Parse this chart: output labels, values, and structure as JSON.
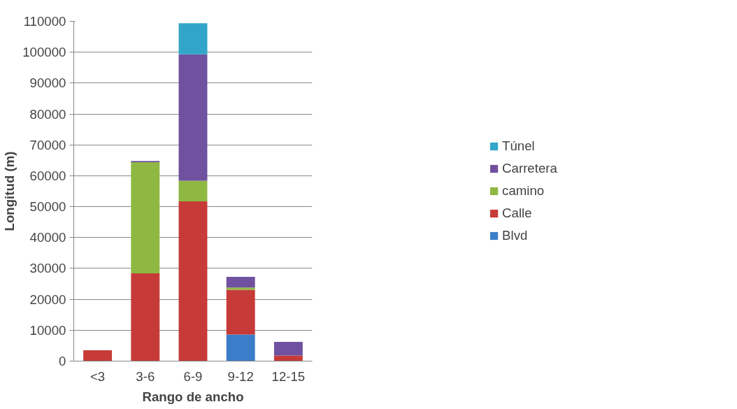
{
  "chart_data": {
    "type": "bar",
    "stacked": true,
    "xlabel": "Rango de ancho",
    "ylabel": "Longitud (m)",
    "categories": [
      "<3",
      "3-6",
      "6-9",
      "9-12",
      "12-15"
    ],
    "series": [
      {
        "name": "Blvd",
        "color": "#3b7dc8",
        "values": [
          0,
          0,
          0,
          8600,
          0
        ]
      },
      {
        "name": "Calle",
        "color": "#c63b38",
        "values": [
          3500,
          28400,
          51700,
          14500,
          1800
        ]
      },
      {
        "name": "camino",
        "color": "#8fb843",
        "values": [
          0,
          36000,
          6700,
          700,
          0
        ]
      },
      {
        "name": "Carretera",
        "color": "#6f51a0",
        "values": [
          0,
          400,
          40900,
          3500,
          4400
        ]
      },
      {
        "name": "Túnel",
        "color": "#31a6c8",
        "values": [
          0,
          0,
          10100,
          0,
          0
        ]
      }
    ],
    "ylim": [
      0,
      110000
    ],
    "yticks": [
      0,
      10000,
      20000,
      30000,
      40000,
      50000,
      60000,
      70000,
      80000,
      90000,
      100000,
      110000
    ],
    "grid": "y",
    "legend": "right"
  }
}
